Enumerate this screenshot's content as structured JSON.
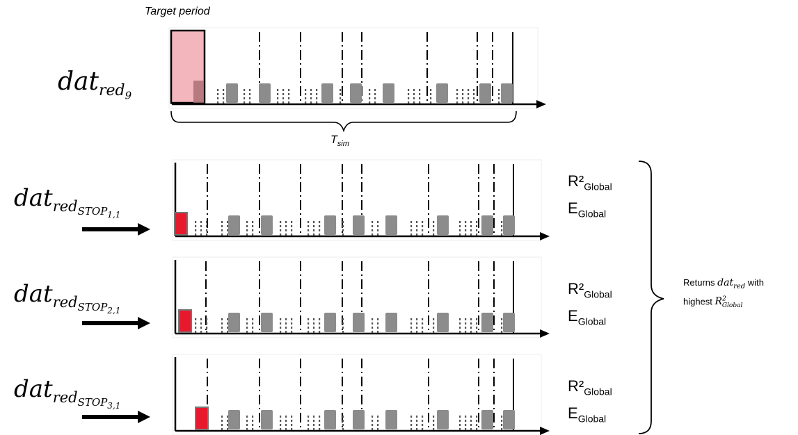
{
  "target_label": "Target period",
  "tsim_label": {
    "main": "T",
    "sub": "sim"
  },
  "rows": [
    {
      "label": {
        "base": "dat",
        "sub": "red",
        "subsub": "9"
      },
      "metrics": []
    },
    {
      "label": {
        "base": "dat",
        "sub": "red",
        "subsub": "STOP",
        "subsubsub": "1,1"
      },
      "metrics": [
        {
          "main": "R²",
          "sub": "Global"
        },
        {
          "main": "E",
          "sub": "Global"
        }
      ]
    },
    {
      "label": {
        "base": "dat",
        "sub": "red",
        "subsub": "STOP",
        "subsubsub": "2,1"
      },
      "metrics": [
        {
          "main": "R²",
          "sub": "Global"
        },
        {
          "main": "E",
          "sub": "Global"
        }
      ]
    },
    {
      "label": {
        "base": "dat",
        "sub": "red",
        "subsub": "STOP",
        "subsubsub": "3,1"
      },
      "metrics": [
        {
          "main": "R²",
          "sub": "Global"
        },
        {
          "main": "E",
          "sub": "Global"
        }
      ]
    }
  ],
  "result": {
    "line1_prefix": "Returns ",
    "line1_var_base": "dat",
    "line1_var_sub": "red",
    "line1_suffix": " with",
    "line2_prefix": "highest ",
    "line2_var_base": "R",
    "line2_var_sup": "2",
    "line2_var_sub": "Global"
  },
  "colors": {
    "axis": "#000000",
    "bar_gray": "#8c8c8c",
    "bar_red": "#e8192c",
    "target_fill": "#f2b6bc",
    "target_border": "#000000"
  }
}
